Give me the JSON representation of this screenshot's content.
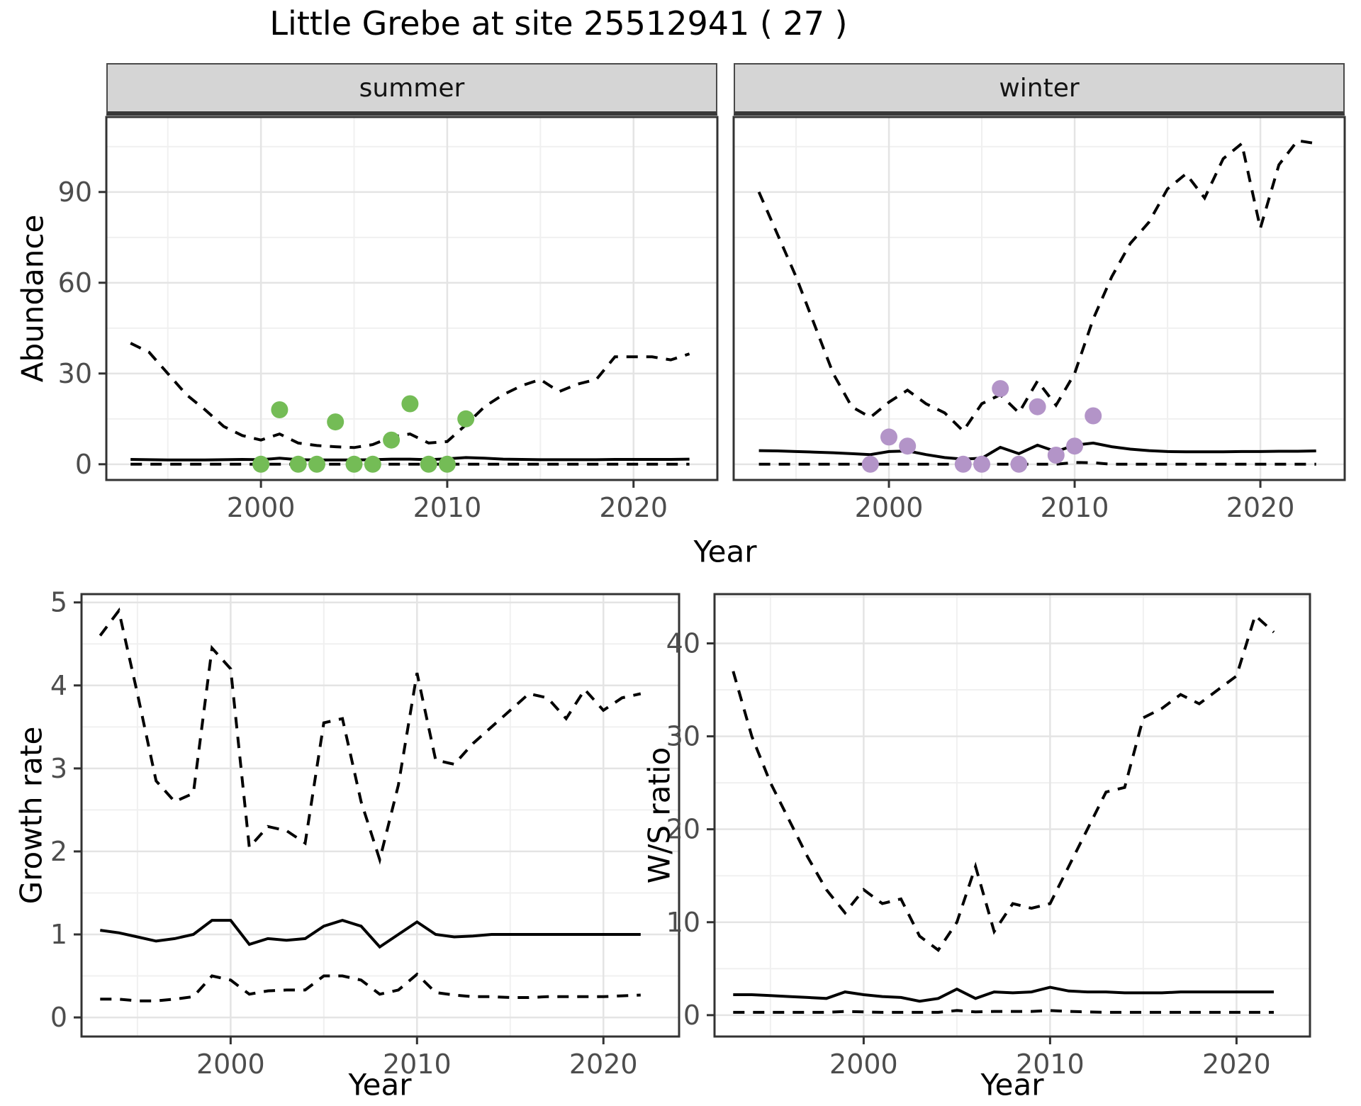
{
  "title": "Little Grebe at site 25512941 ( 27 )",
  "labels": {
    "facet_summer": "summer",
    "facet_winter": "winter",
    "y_top": "Abundance",
    "x_top": "Year",
    "y_bottom_left": "Growth rate",
    "x_bottom_left": "Year",
    "y_bottom_right": "W/S ratio",
    "x_bottom_right": "Year"
  },
  "colors": {
    "summer_point": "#74bc56",
    "winter_point": "#b394c8",
    "line": "#000000",
    "grid_major": "#e4e4e4",
    "grid_minor": "#f0f0f0",
    "panel_border": "#333333",
    "tick_text": "#4d4d4d",
    "strip_bg": "#d5d5d5"
  },
  "chart_data": [
    {
      "id": "summer",
      "type": "line",
      "facet": "summer",
      "xlabel": "Year",
      "ylabel": "Abundance",
      "xlim": [
        1991.7,
        2024.5
      ],
      "ylim": [
        -5.2,
        114.8
      ],
      "xticks": [
        2000,
        2010,
        2020
      ],
      "yticks": [
        0,
        30,
        60,
        90
      ],
      "minor_x": [
        1995,
        2005,
        2015
      ],
      "minor_y": [
        15,
        45,
        75,
        105
      ],
      "x": [
        1993,
        1994,
        1995,
        1996,
        1997,
        1998,
        1999,
        2000,
        2001,
        2002,
        2003,
        2004,
        2005,
        2006,
        2007,
        2008,
        2009,
        2010,
        2011,
        2012,
        2013,
        2014,
        2015,
        2016,
        2017,
        2018,
        2019,
        2020,
        2021,
        2022,
        2023
      ],
      "series": [
        {
          "name": "upper_ci",
          "style": "dashed",
          "values": [
            40,
            37,
            30,
            23,
            18,
            12.5,
            9.5,
            8,
            10,
            7,
            6.2,
            5.8,
            5.5,
            6.5,
            9,
            10,
            7,
            7.5,
            13,
            19,
            23,
            26,
            28,
            24,
            26.5,
            28,
            35.5,
            35.5,
            35.5,
            34.5,
            36.5
          ]
        },
        {
          "name": "median",
          "style": "solid",
          "values": [
            1.6,
            1.5,
            1.4,
            1.4,
            1.4,
            1.5,
            1.6,
            1.5,
            2.0,
            1.5,
            1.4,
            1.4,
            1.4,
            1.5,
            1.7,
            1.7,
            1.5,
            1.8,
            2.2,
            2.0,
            1.7,
            1.6,
            1.5,
            1.5,
            1.5,
            1.5,
            1.6,
            1.6,
            1.6,
            1.6,
            1.7
          ]
        },
        {
          "name": "lower_ci",
          "style": "dashed",
          "values": [
            0,
            0,
            0,
            0,
            0,
            0,
            0,
            0,
            0,
            0,
            0,
            0,
            0,
            0,
            0,
            0,
            0,
            0,
            0,
            0,
            0,
            0,
            0,
            0,
            0,
            0,
            0,
            0,
            0,
            0,
            0
          ]
        }
      ],
      "points": {
        "name": "observed_summer",
        "color_key": "summer_point",
        "x": [
          2000,
          2001,
          2002,
          2003,
          2004,
          2005,
          2006,
          2007,
          2008,
          2009,
          2010,
          2011
        ],
        "y": [
          0,
          18,
          0,
          0,
          14,
          0,
          0,
          8,
          20,
          0,
          0,
          15
        ]
      }
    },
    {
      "id": "winter",
      "type": "line",
      "facet": "winter",
      "xlabel": "Year",
      "ylabel": "Abundance",
      "xlim": [
        1991.64,
        2024.54
      ],
      "ylim": [
        -5.2,
        114.8
      ],
      "xticks": [
        2000,
        2010,
        2020
      ],
      "yticks": [
        0,
        30,
        60,
        90
      ],
      "minor_x": [
        1995,
        2005,
        2015
      ],
      "minor_y": [
        15,
        45,
        75,
        105
      ],
      "x": [
        1993,
        1994,
        1995,
        1996,
        1997,
        1998,
        1999,
        2000,
        2001,
        2002,
        2003,
        2004,
        2005,
        2006,
        2007,
        2008,
        2009,
        2010,
        2011,
        2012,
        2013,
        2014,
        2015,
        2016,
        2017,
        2018,
        2019,
        2020,
        2021,
        2022,
        2023
      ],
      "series": [
        {
          "name": "upper_ci",
          "style": "dashed",
          "values": [
            90,
            76,
            62,
            46,
            30,
            19,
            15.5,
            20.5,
            24.5,
            20,
            17,
            11,
            20,
            23,
            17,
            27.5,
            19.5,
            30,
            48,
            62,
            73,
            80,
            91,
            96,
            88,
            101,
            106,
            78,
            99,
            107,
            106
          ]
        },
        {
          "name": "median",
          "style": "solid",
          "values": [
            4.5,
            4.4,
            4.2,
            4.0,
            3.8,
            3.5,
            3.2,
            4.2,
            4.4,
            3.2,
            2.2,
            1.7,
            2.0,
            5.6,
            3.5,
            6.3,
            4.2,
            6.3,
            7.0,
            5.8,
            5.0,
            4.5,
            4.2,
            4.1,
            4.1,
            4.1,
            4.2,
            4.2,
            4.3,
            4.3,
            4.4
          ]
        },
        {
          "name": "lower_ci",
          "style": "dashed",
          "values": [
            0,
            0,
            0,
            0,
            0,
            0,
            0,
            0,
            0,
            0,
            0,
            0,
            0,
            0,
            0,
            0,
            0,
            0.6,
            0.5,
            0,
            0,
            0,
            0,
            0,
            0,
            0,
            0,
            0,
            0,
            0,
            0
          ]
        }
      ],
      "points": {
        "name": "observed_winter",
        "color_key": "winter_point",
        "x": [
          1999,
          2000,
          2001,
          2004,
          2005,
          2006,
          2007,
          2008,
          2009,
          2010,
          2011
        ],
        "y": [
          0,
          9,
          6,
          0,
          0,
          25,
          0,
          19,
          3,
          6,
          16
        ]
      }
    },
    {
      "id": "growth",
      "type": "line",
      "facet": null,
      "xlabel": "Year",
      "ylabel": "Growth rate",
      "xlim": [
        1992.0,
        2024.06
      ],
      "ylim": [
        -0.23,
        5.1
      ],
      "xticks": [
        2000,
        2010,
        2020
      ],
      "yticks": [
        0,
        1,
        2,
        3,
        4,
        5
      ],
      "minor_x": [
        1995,
        2005,
        2015
      ],
      "minor_y": [
        0.5,
        1.5,
        2.5,
        3.5,
        4.5
      ],
      "x": [
        1993,
        1994,
        1995,
        1996,
        1997,
        1998,
        1999,
        2000,
        2001,
        2002,
        2003,
        2004,
        2005,
        2006,
        2007,
        2008,
        2009,
        2010,
        2011,
        2012,
        2013,
        2014,
        2015,
        2016,
        2017,
        2018,
        2019,
        2020,
        2021,
        2022
      ],
      "series": [
        {
          "name": "upper_ci",
          "style": "dashed",
          "values": [
            4.6,
            4.9,
            3.9,
            2.85,
            2.6,
            2.7,
            4.45,
            4.2,
            2.05,
            2.3,
            2.25,
            2.1,
            3.55,
            3.6,
            2.6,
            1.9,
            2.8,
            4.15,
            3.1,
            3.05,
            3.3,
            3.5,
            3.7,
            3.9,
            3.85,
            3.6,
            3.95,
            3.7,
            3.85,
            3.9
          ]
        },
        {
          "name": "median",
          "style": "solid",
          "values": [
            1.05,
            1.02,
            0.97,
            0.92,
            0.95,
            1.0,
            1.17,
            1.17,
            0.88,
            0.95,
            0.93,
            0.95,
            1.1,
            1.17,
            1.1,
            0.85,
            1.0,
            1.15,
            1.0,
            0.97,
            0.98,
            1.0,
            1.0,
            1.0,
            1.0,
            1.0,
            1.0,
            1.0,
            1.0,
            1.0
          ]
        },
        {
          "name": "lower_ci",
          "style": "dashed",
          "values": [
            0.22,
            0.22,
            0.2,
            0.2,
            0.22,
            0.25,
            0.5,
            0.45,
            0.28,
            0.32,
            0.33,
            0.33,
            0.5,
            0.5,
            0.45,
            0.28,
            0.33,
            0.52,
            0.3,
            0.27,
            0.25,
            0.25,
            0.24,
            0.24,
            0.25,
            0.25,
            0.25,
            0.25,
            0.26,
            0.27
          ]
        }
      ],
      "points": null
    },
    {
      "id": "ws",
      "type": "line",
      "facet": null,
      "xlabel": "Year",
      "ylabel": "W/S ratio",
      "xlim": [
        1992.0,
        2023.94
      ],
      "ylim": [
        -2.3,
        45.3
      ],
      "xticks": [
        2000,
        2010,
        2020
      ],
      "yticks": [
        0,
        10,
        20,
        30,
        40
      ],
      "minor_x": [
        1995,
        2005,
        2015
      ],
      "minor_y": [
        5,
        15,
        25,
        35,
        45
      ],
      "x": [
        1993,
        1994,
        1995,
        1996,
        1997,
        1998,
        1999,
        2000,
        2001,
        2002,
        2003,
        2004,
        2005,
        2006,
        2007,
        2008,
        2009,
        2010,
        2011,
        2012,
        2013,
        2014,
        2015,
        2016,
        2017,
        2018,
        2019,
        2020,
        2021,
        2022
      ],
      "series": [
        {
          "name": "upper_ci",
          "style": "dashed",
          "values": [
            37,
            30,
            25,
            21,
            17,
            13.5,
            11,
            13.5,
            12,
            12.5,
            8.5,
            7,
            10,
            16,
            9,
            12,
            11.5,
            12,
            16,
            20,
            24,
            24.5,
            32,
            33,
            34.5,
            33.5,
            35,
            36.5,
            43,
            41.2
          ]
        },
        {
          "name": "median",
          "style": "solid",
          "values": [
            2.2,
            2.2,
            2.1,
            2.0,
            1.9,
            1.8,
            2.5,
            2.2,
            2.0,
            1.9,
            1.5,
            1.8,
            2.8,
            1.8,
            2.5,
            2.4,
            2.5,
            3.0,
            2.6,
            2.5,
            2.5,
            2.4,
            2.4,
            2.4,
            2.5,
            2.5,
            2.5,
            2.5,
            2.5,
            2.5
          ]
        },
        {
          "name": "lower_ci",
          "style": "dashed",
          "values": [
            0.3,
            0.3,
            0.3,
            0.3,
            0.3,
            0.3,
            0.4,
            0.35,
            0.3,
            0.3,
            0.3,
            0.3,
            0.5,
            0.35,
            0.4,
            0.4,
            0.4,
            0.5,
            0.4,
            0.35,
            0.3,
            0.3,
            0.3,
            0.3,
            0.3,
            0.3,
            0.3,
            0.3,
            0.3,
            0.3
          ]
        }
      ],
      "points": null
    }
  ]
}
